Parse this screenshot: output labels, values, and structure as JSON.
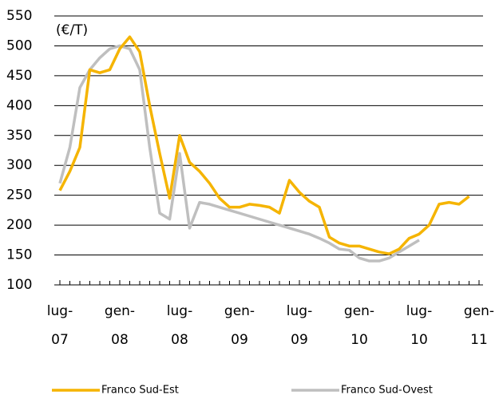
{
  "chart_data": {
    "type": "line",
    "annotation": "(€/T)",
    "x": [
      "2007-07",
      "2007-08",
      "2007-09",
      "2007-10",
      "2007-11",
      "2007-12",
      "2008-01",
      "2008-02",
      "2008-03",
      "2008-04",
      "2008-05",
      "2008-06",
      "2008-07",
      "2008-08",
      "2008-09",
      "2008-10",
      "2008-11",
      "2008-12",
      "2009-01",
      "2009-02",
      "2009-03",
      "2009-04",
      "2009-05",
      "2009-06",
      "2009-07",
      "2009-08",
      "2009-09",
      "2009-10",
      "2009-11",
      "2009-12",
      "2010-01",
      "2010-02",
      "2010-03",
      "2010-04",
      "2010-05",
      "2010-06",
      "2010-07",
      "2010-08",
      "2010-09",
      "2010-10",
      "2010-11",
      "2010-12"
    ],
    "series": [
      {
        "name": "Franco Sud-Est",
        "color": "#f5b400",
        "values": [
          258,
          290,
          330,
          460,
          455,
          460,
          495,
          515,
          490,
          400,
          320,
          245,
          350,
          305,
          290,
          270,
          245,
          230,
          230,
          235,
          233,
          230,
          220,
          275,
          255,
          240,
          230,
          180,
          170,
          165,
          165,
          160,
          155,
          152,
          160,
          178,
          185,
          200,
          235,
          238,
          235,
          248
        ]
      },
      {
        "name": "Franco Sud-Ovest",
        "color": "#bfbfbf",
        "values": [
          270,
          330,
          430,
          460,
          480,
          495,
          500,
          495,
          460,
          330,
          220,
          210,
          320,
          195,
          238,
          235,
          230,
          225,
          220,
          215,
          210,
          205,
          200,
          195,
          190,
          185,
          178,
          170,
          160,
          158,
          145,
          140,
          140,
          145,
          155,
          165,
          175,
          null,
          null,
          null,
          null,
          null
        ]
      }
    ],
    "ylim": [
      100,
      550
    ],
    "yticks": [
      100,
      150,
      200,
      250,
      300,
      350,
      400,
      450,
      500,
      550
    ],
    "xticks": [
      {
        "value": "2007-07",
        "label": "lug-\n07"
      },
      {
        "value": "2008-01",
        "label": "gen-\n08"
      },
      {
        "value": "2008-07",
        "label": "lug-\n08"
      },
      {
        "value": "2009-01",
        "label": "gen-\n09"
      },
      {
        "value": "2009-07",
        "label": "lug-\n09"
      },
      {
        "value": "2010-01",
        "label": "gen-\n10"
      },
      {
        "value": "2010-07",
        "label": "lug-\n10"
      },
      {
        "value": "2011-01",
        "label": "gen-\n11"
      }
    ],
    "grid": true,
    "legend": "bottom"
  }
}
